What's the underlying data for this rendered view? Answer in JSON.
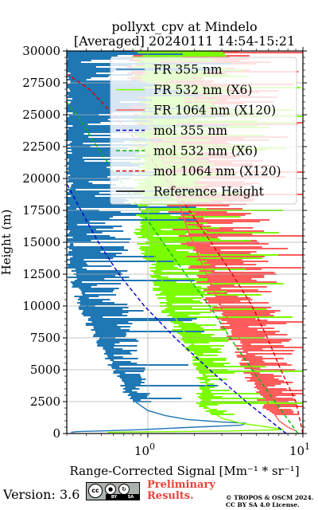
{
  "chart_data": {
    "type": "line",
    "title_lines": [
      "pollyxt_cpv at Mindelo",
      "[Averaged] 20240111 14:54-15:21"
    ],
    "xlabel": "Range-Corrected Signal [Mm⁻¹ * sr⁻¹]",
    "ylabel": "Height (m)",
    "x_scale": "log",
    "xlim": [
      0.3,
      10
    ],
    "ylim": [
      0,
      30000
    ],
    "x_ticks": [
      {
        "value": 1,
        "base": "10",
        "exp": "0"
      },
      {
        "value": 10,
        "base": "10",
        "exp": "1"
      }
    ],
    "y_ticks": [
      0,
      2500,
      5000,
      7500,
      10000,
      12500,
      15000,
      17500,
      20000,
      22500,
      25000,
      27500,
      30000
    ],
    "grid": true,
    "legend_position": "top-right",
    "series": [
      {
        "name": "FR 355 nm",
        "color": "#1f77b4",
        "style": "solid",
        "points": [
          [
            0.32,
            100
          ],
          [
            0.35,
            150
          ],
          [
            0.5,
            200
          ],
          [
            0.9,
            300
          ],
          [
            2.0,
            500
          ],
          [
            4.0,
            650
          ],
          [
            4.3,
            800
          ],
          [
            3.0,
            900
          ],
          [
            1.8,
            1100
          ],
          [
            1.3,
            1400
          ],
          [
            1.0,
            1800
          ],
          [
            0.85,
            2400
          ],
          [
            0.78,
            3000
          ],
          [
            0.72,
            3800
          ],
          [
            0.66,
            4700
          ],
          [
            0.6,
            5600
          ],
          [
            0.55,
            6500
          ],
          [
            0.5,
            7500
          ],
          [
            0.45,
            8500
          ],
          [
            0.42,
            9500
          ],
          [
            0.38,
            11000
          ],
          [
            0.35,
            12500
          ],
          [
            0.33,
            14000
          ]
        ]
      },
      {
        "name": "FR 532 nm (X6)",
        "color": "#7cfc00",
        "style": "solid",
        "points": [
          [
            0.55,
            100
          ],
          [
            3.5,
            200
          ],
          [
            7.5,
            300
          ],
          [
            6.0,
            500
          ],
          [
            4.0,
            800
          ],
          [
            3.0,
            1200
          ],
          [
            2.6,
            1700
          ],
          [
            2.3,
            2300
          ],
          [
            2.2,
            3000
          ],
          [
            2.4,
            3800
          ],
          [
            2.3,
            4800
          ],
          [
            2.1,
            6000
          ],
          [
            1.9,
            7200
          ],
          [
            1.6,
            8500
          ],
          [
            1.4,
            9800
          ],
          [
            1.3,
            11000
          ],
          [
            1.2,
            12500
          ],
          [
            1.1,
            14000
          ],
          [
            1.0,
            15500
          ]
        ]
      },
      {
        "name": "FR 1064 nm (X120)",
        "color": "#ff5c5c",
        "style": "solid",
        "points": [
          [
            9.0,
            200
          ],
          [
            8.0,
            500
          ],
          [
            7.0,
            1000
          ],
          [
            6.5,
            1600
          ],
          [
            6.0,
            2300
          ],
          [
            5.5,
            3200
          ],
          [
            5.0,
            4200
          ],
          [
            4.6,
            5400
          ],
          [
            4.2,
            6800
          ],
          [
            3.6,
            8200
          ],
          [
            3.0,
            9800
          ],
          [
            2.6,
            11500
          ],
          [
            2.2,
            13500
          ],
          [
            1.8,
            16000
          ],
          [
            1.5,
            19000
          ],
          [
            1.2,
            22000
          ],
          [
            1.0,
            25000
          ]
        ]
      },
      {
        "name": "mol 355 nm",
        "color": "#0000cc",
        "style": "dashed",
        "points": [
          [
            7.8,
            0
          ],
          [
            4.3,
            2500
          ],
          [
            2.5,
            5000
          ],
          [
            1.5,
            7500
          ],
          [
            0.95,
            10000
          ],
          [
            0.65,
            12500
          ],
          [
            0.48,
            15000
          ],
          [
            0.37,
            17500
          ],
          [
            0.3,
            19600
          ]
        ]
      },
      {
        "name": "mol 532 nm (X6)",
        "color": "#00bb00",
        "style": "dashed",
        "points": [
          [
            9.3,
            0
          ],
          [
            6.6,
            2500
          ],
          [
            4.7,
            5000
          ],
          [
            3.4,
            7500
          ],
          [
            2.5,
            10000
          ],
          [
            1.75,
            12500
          ],
          [
            1.25,
            15000
          ],
          [
            0.9,
            17500
          ],
          [
            0.65,
            20000
          ],
          [
            0.47,
            22500
          ],
          [
            0.35,
            25000
          ],
          [
            0.3,
            26000
          ]
        ]
      },
      {
        "name": "mol 1064 nm (X120)",
        "color": "#dd0000",
        "style": "dashed",
        "points": [
          [
            10.0,
            0
          ],
          [
            9.0,
            2500
          ],
          [
            7.2,
            5000
          ],
          [
            5.9,
            7500
          ],
          [
            4.7,
            10000
          ],
          [
            3.5,
            12500
          ],
          [
            2.55,
            15000
          ],
          [
            1.85,
            17500
          ],
          [
            1.3,
            20000
          ],
          [
            0.92,
            22500
          ],
          [
            0.6,
            25000
          ],
          [
            0.42,
            27000
          ],
          [
            0.3,
            28200
          ]
        ]
      },
      {
        "name": "Reference Height",
        "color": "#000000",
        "style": "solid",
        "points": []
      }
    ]
  },
  "footer": {
    "version": "Version: 3.6",
    "license_badge": {
      "by": "BY",
      "sa": "SA",
      "cc": "cc"
    },
    "preliminary": [
      "Preliminary",
      "Results."
    ],
    "copyright": [
      "© TROPOS & OSCM 2024.",
      "CC BY SA 4.0 License."
    ]
  },
  "colors": {
    "fr355": "#1f77b4",
    "fr532": "#7cfc00",
    "fr1064": "#ff5c5c",
    "accent": "#e8423c"
  }
}
